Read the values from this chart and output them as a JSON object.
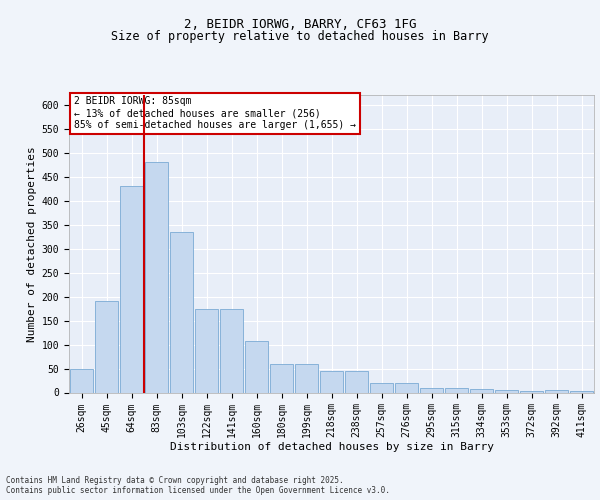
{
  "title_line1": "2, BEIDR IORWG, BARRY, CF63 1FG",
  "title_line2": "Size of property relative to detached houses in Barry",
  "xlabel": "Distribution of detached houses by size in Barry",
  "ylabel": "Number of detached properties",
  "categories": [
    "26sqm",
    "45sqm",
    "64sqm",
    "83sqm",
    "103sqm",
    "122sqm",
    "141sqm",
    "160sqm",
    "180sqm",
    "199sqm",
    "218sqm",
    "238sqm",
    "257sqm",
    "276sqm",
    "295sqm",
    "315sqm",
    "334sqm",
    "353sqm",
    "372sqm",
    "392sqm",
    "411sqm"
  ],
  "values": [
    50,
    190,
    430,
    480,
    335,
    175,
    175,
    108,
    60,
    60,
    44,
    44,
    20,
    20,
    10,
    10,
    7,
    5,
    4,
    5,
    3
  ],
  "bar_color": "#c5d8ef",
  "bar_edge_color": "#7aaad4",
  "red_line_x": 3,
  "annotation_text": "2 BEIDR IORWG: 85sqm\n← 13% of detached houses are smaller (256)\n85% of semi-detached houses are larger (1,655) →",
  "annotation_box_color": "#ffffff",
  "annotation_border_color": "#cc0000",
  "ylim": [
    0,
    620
  ],
  "yticks": [
    0,
    50,
    100,
    150,
    200,
    250,
    300,
    350,
    400,
    450,
    500,
    550,
    600
  ],
  "footer_text": "Contains HM Land Registry data © Crown copyright and database right 2025.\nContains public sector information licensed under the Open Government Licence v3.0.",
  "background_color": "#f0f4fa",
  "plot_background": "#e8eef8",
  "grid_color": "#ffffff",
  "title_fontsize": 9,
  "subtitle_fontsize": 8.5,
  "axis_label_fontsize": 8,
  "tick_fontsize": 7,
  "annotation_fontsize": 7,
  "footer_fontsize": 5.5
}
